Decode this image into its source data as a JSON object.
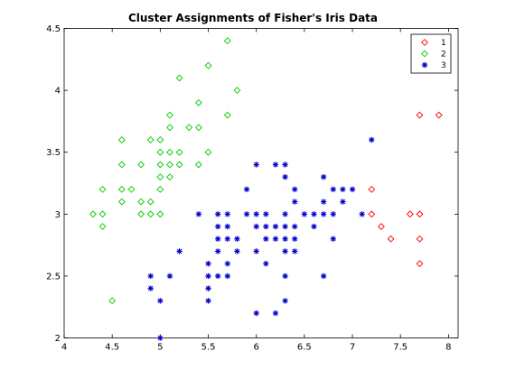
{
  "chart_data": {
    "type": "scatter",
    "title": "Cluster Assignments of Fisher's Iris Data",
    "xlabel": "",
    "ylabel": "",
    "xlim": [
      4,
      8.1
    ],
    "ylim": [
      2,
      4.5
    ],
    "xticks": [
      4,
      4.5,
      5,
      5.5,
      6,
      6.5,
      7,
      7.5,
      8
    ],
    "xtick_labels": [
      "4",
      "4.5",
      "5",
      "5.5",
      "6",
      "6.5",
      "7",
      "7.5",
      "8"
    ],
    "yticks": [
      2,
      2.5,
      3,
      3.5,
      4,
      4.5
    ],
    "ytick_labels": [
      "2",
      "2.5",
      "3",
      "3.5",
      "4",
      "4.5"
    ],
    "grid": false,
    "legend_position": "top-right",
    "series": [
      {
        "name": "1",
        "marker": "diamond",
        "color": "#ff0000",
        "points": [
          [
            7.7,
            3.8
          ],
          [
            7.9,
            3.8
          ],
          [
            7.2,
            3.2
          ],
          [
            7.2,
            3.0
          ],
          [
            7.3,
            2.9
          ],
          [
            7.4,
            2.8
          ],
          [
            7.6,
            3.0
          ],
          [
            7.7,
            3.0
          ],
          [
            7.7,
            2.8
          ],
          [
            7.7,
            2.6
          ]
        ]
      },
      {
        "name": "2",
        "marker": "diamond",
        "color": "#00cc00",
        "points": [
          [
            5.7,
            4.4
          ],
          [
            5.5,
            4.2
          ],
          [
            5.2,
            4.1
          ],
          [
            5.8,
            4.0
          ],
          [
            5.4,
            3.9
          ],
          [
            5.1,
            3.8
          ],
          [
            5.7,
            3.8
          ],
          [
            5.1,
            3.7
          ],
          [
            5.3,
            3.7
          ],
          [
            5.4,
            3.7
          ],
          [
            4.6,
            3.6
          ],
          [
            4.9,
            3.6
          ],
          [
            5.0,
            3.6
          ],
          [
            5.0,
            3.5
          ],
          [
            5.1,
            3.5
          ],
          [
            5.2,
            3.5
          ],
          [
            5.5,
            3.5
          ],
          [
            4.6,
            3.4
          ],
          [
            4.8,
            3.4
          ],
          [
            5.0,
            3.4
          ],
          [
            5.1,
            3.4
          ],
          [
            5.2,
            3.4
          ],
          [
            5.4,
            3.4
          ],
          [
            5.0,
            3.3
          ],
          [
            5.1,
            3.3
          ],
          [
            4.4,
            3.2
          ],
          [
            4.6,
            3.2
          ],
          [
            4.7,
            3.2
          ],
          [
            5.0,
            3.2
          ],
          [
            4.6,
            3.1
          ],
          [
            4.8,
            3.1
          ],
          [
            4.9,
            3.1
          ],
          [
            4.3,
            3.0
          ],
          [
            4.4,
            3.0
          ],
          [
            4.8,
            3.0
          ],
          [
            4.9,
            3.0
          ],
          [
            5.0,
            3.0
          ],
          [
            4.4,
            2.9
          ],
          [
            4.5,
            2.3
          ]
        ]
      },
      {
        "name": "3",
        "marker": "asterisk",
        "color": "#0000cc",
        "points": [
          [
            7.2,
            3.6
          ],
          [
            6.0,
            3.4
          ],
          [
            6.3,
            3.4
          ],
          [
            6.2,
            3.4
          ],
          [
            6.3,
            3.3
          ],
          [
            6.7,
            3.3
          ],
          [
            5.9,
            3.2
          ],
          [
            6.4,
            3.2
          ],
          [
            6.8,
            3.2
          ],
          [
            6.9,
            3.2
          ],
          [
            7.0,
            3.2
          ],
          [
            6.4,
            3.1
          ],
          [
            6.7,
            3.1
          ],
          [
            6.9,
            3.1
          ],
          [
            6.8,
            3.0
          ],
          [
            5.4,
            3.0
          ],
          [
            5.6,
            3.0
          ],
          [
            5.7,
            3.0
          ],
          [
            5.9,
            3.0
          ],
          [
            6.0,
            3.0
          ],
          [
            6.1,
            3.0
          ],
          [
            6.5,
            3.0
          ],
          [
            6.6,
            3.0
          ],
          [
            6.7,
            3.0
          ],
          [
            7.1,
            3.0
          ],
          [
            6.3,
            3.0
          ],
          [
            5.6,
            2.9
          ],
          [
            5.7,
            2.9
          ],
          [
            6.0,
            2.9
          ],
          [
            6.1,
            2.9
          ],
          [
            6.2,
            2.9
          ],
          [
            6.3,
            2.9
          ],
          [
            6.4,
            2.9
          ],
          [
            6.6,
            2.9
          ],
          [
            5.6,
            2.8
          ],
          [
            5.7,
            2.8
          ],
          [
            5.8,
            2.8
          ],
          [
            6.1,
            2.8
          ],
          [
            6.2,
            2.8
          ],
          [
            6.3,
            2.8
          ],
          [
            6.4,
            2.8
          ],
          [
            6.8,
            2.8
          ],
          [
            5.2,
            2.7
          ],
          [
            5.6,
            2.7
          ],
          [
            5.8,
            2.7
          ],
          [
            6.0,
            2.7
          ],
          [
            6.3,
            2.7
          ],
          [
            6.4,
            2.7
          ],
          [
            5.5,
            2.6
          ],
          [
            5.7,
            2.6
          ],
          [
            6.1,
            2.6
          ],
          [
            4.9,
            2.5
          ],
          [
            5.1,
            2.5
          ],
          [
            5.5,
            2.5
          ],
          [
            5.6,
            2.5
          ],
          [
            5.7,
            2.5
          ],
          [
            6.3,
            2.5
          ],
          [
            6.7,
            2.5
          ],
          [
            4.9,
            2.4
          ],
          [
            5.5,
            2.4
          ],
          [
            5.0,
            2.3
          ],
          [
            5.5,
            2.3
          ],
          [
            6.3,
            2.3
          ],
          [
            6.0,
            2.2
          ],
          [
            6.2,
            2.2
          ],
          [
            5.0,
            2.0
          ]
        ]
      }
    ]
  }
}
